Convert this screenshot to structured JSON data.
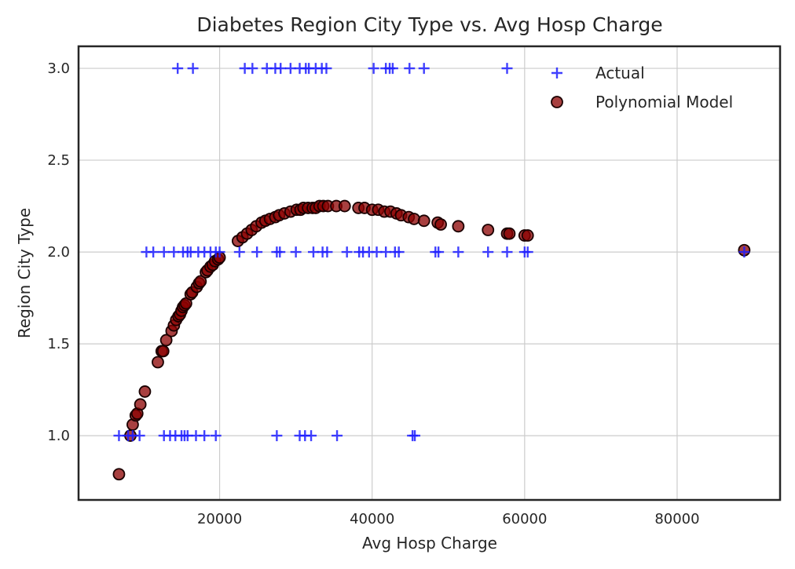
{
  "chart_data": {
    "type": "scatter",
    "title": "Diabetes Region City Type vs. Avg Hosp Charge",
    "xlabel": "Avg Hosp Charge",
    "ylabel": "Region City Type",
    "xlim": [
      1500,
      93500
    ],
    "ylim": [
      0.65,
      3.12
    ],
    "xticks": [
      20000,
      40000,
      60000,
      80000
    ],
    "yticks": [
      1.0,
      1.5,
      2.0,
      2.5,
      3.0
    ],
    "xtick_labels": [
      "20000",
      "40000",
      "60000",
      "80000"
    ],
    "ytick_labels": [
      "1.0",
      "1.5",
      "2.0",
      "2.5",
      "3.0"
    ],
    "grid": true,
    "legend_position": "top-right",
    "series": [
      {
        "name": "Actual",
        "marker": "plus",
        "color": "#1f1fff",
        "points": [
          [
            14500,
            3
          ],
          [
            16500,
            3
          ],
          [
            23300,
            3
          ],
          [
            24300,
            3
          ],
          [
            26200,
            3
          ],
          [
            27300,
            3
          ],
          [
            28000,
            3
          ],
          [
            29300,
            3
          ],
          [
            30500,
            3
          ],
          [
            31300,
            3
          ],
          [
            31700,
            3
          ],
          [
            32600,
            3
          ],
          [
            33400,
            3
          ],
          [
            34000,
            3
          ],
          [
            40200,
            3
          ],
          [
            41800,
            3
          ],
          [
            42300,
            3
          ],
          [
            42700,
            3
          ],
          [
            44900,
            3
          ],
          [
            46800,
            3
          ],
          [
            57700,
            3
          ],
          [
            10400,
            2
          ],
          [
            11300,
            2
          ],
          [
            12700,
            2
          ],
          [
            14000,
            2
          ],
          [
            15200,
            2
          ],
          [
            15800,
            2
          ],
          [
            16200,
            2
          ],
          [
            17200,
            2
          ],
          [
            18000,
            2
          ],
          [
            18800,
            2
          ],
          [
            19500,
            2
          ],
          [
            20000,
            2
          ],
          [
            22600,
            2
          ],
          [
            24900,
            2
          ],
          [
            27500,
            2
          ],
          [
            27900,
            2
          ],
          [
            30000,
            2
          ],
          [
            32300,
            2
          ],
          [
            33500,
            2
          ],
          [
            34100,
            2
          ],
          [
            36700,
            2
          ],
          [
            38300,
            2
          ],
          [
            38800,
            2
          ],
          [
            39600,
            2
          ],
          [
            40600,
            2
          ],
          [
            41800,
            2
          ],
          [
            43000,
            2
          ],
          [
            43500,
            2
          ],
          [
            48300,
            2
          ],
          [
            48700,
            2
          ],
          [
            51300,
            2
          ],
          [
            55200,
            2
          ],
          [
            57700,
            2
          ],
          [
            60000,
            2
          ],
          [
            60400,
            2
          ],
          [
            88800,
            2
          ],
          [
            6800,
            1
          ],
          [
            8000,
            1
          ],
          [
            8600,
            1
          ],
          [
            9500,
            1
          ],
          [
            12700,
            1
          ],
          [
            13500,
            1
          ],
          [
            14200,
            1
          ],
          [
            15000,
            1
          ],
          [
            15400,
            1
          ],
          [
            15800,
            1
          ],
          [
            16900,
            1
          ],
          [
            18000,
            1
          ],
          [
            19500,
            1
          ],
          [
            27500,
            1
          ],
          [
            30500,
            1
          ],
          [
            31200,
            1
          ],
          [
            32000,
            1
          ],
          [
            35400,
            1
          ],
          [
            45300,
            1
          ],
          [
            45600,
            1
          ]
        ]
      },
      {
        "name": "Polynomial Model",
        "marker": "circle",
        "color": "#8b0000",
        "points": [
          [
            6800,
            0.79
          ],
          [
            8300,
            1.0
          ],
          [
            8600,
            1.06
          ],
          [
            9000,
            1.11
          ],
          [
            9200,
            1.12
          ],
          [
            9600,
            1.17
          ],
          [
            10200,
            1.24
          ],
          [
            11900,
            1.4
          ],
          [
            12400,
            1.46
          ],
          [
            12600,
            1.46
          ],
          [
            13000,
            1.52
          ],
          [
            13700,
            1.57
          ],
          [
            14000,
            1.6
          ],
          [
            14300,
            1.63
          ],
          [
            14600,
            1.65
          ],
          [
            14800,
            1.66
          ],
          [
            15000,
            1.68
          ],
          [
            15200,
            1.7
          ],
          [
            15400,
            1.71
          ],
          [
            15600,
            1.72
          ],
          [
            16200,
            1.77
          ],
          [
            16400,
            1.78
          ],
          [
            17000,
            1.81
          ],
          [
            17300,
            1.83
          ],
          [
            17500,
            1.84
          ],
          [
            18200,
            1.89
          ],
          [
            18400,
            1.9
          ],
          [
            18800,
            1.92
          ],
          [
            19100,
            1.93
          ],
          [
            19400,
            1.95
          ],
          [
            19800,
            1.96
          ],
          [
            20000,
            1.97
          ],
          [
            22400,
            2.06
          ],
          [
            23000,
            2.08
          ],
          [
            23600,
            2.1
          ],
          [
            24200,
            2.12
          ],
          [
            24800,
            2.14
          ],
          [
            25500,
            2.16
          ],
          [
            26000,
            2.17
          ],
          [
            26600,
            2.18
          ],
          [
            27300,
            2.19
          ],
          [
            27800,
            2.2
          ],
          [
            28500,
            2.21
          ],
          [
            29300,
            2.22
          ],
          [
            30100,
            2.23
          ],
          [
            30600,
            2.23
          ],
          [
            31000,
            2.24
          ],
          [
            31600,
            2.24
          ],
          [
            32200,
            2.24
          ],
          [
            32600,
            2.24
          ],
          [
            33100,
            2.25
          ],
          [
            33600,
            2.25
          ],
          [
            34200,
            2.25
          ],
          [
            35300,
            2.25
          ],
          [
            36400,
            2.25
          ],
          [
            38200,
            2.24
          ],
          [
            39000,
            2.24
          ],
          [
            40000,
            2.23
          ],
          [
            40800,
            2.23
          ],
          [
            41600,
            2.22
          ],
          [
            42400,
            2.22
          ],
          [
            43200,
            2.21
          ],
          [
            43800,
            2.2
          ],
          [
            44800,
            2.19
          ],
          [
            45500,
            2.18
          ],
          [
            46800,
            2.17
          ],
          [
            48600,
            2.16
          ],
          [
            49000,
            2.15
          ],
          [
            51300,
            2.14
          ],
          [
            55200,
            2.12
          ],
          [
            57700,
            2.1
          ],
          [
            58000,
            2.1
          ],
          [
            60000,
            2.09
          ],
          [
            60400,
            2.09
          ],
          [
            88800,
            2.01
          ]
        ]
      }
    ]
  }
}
